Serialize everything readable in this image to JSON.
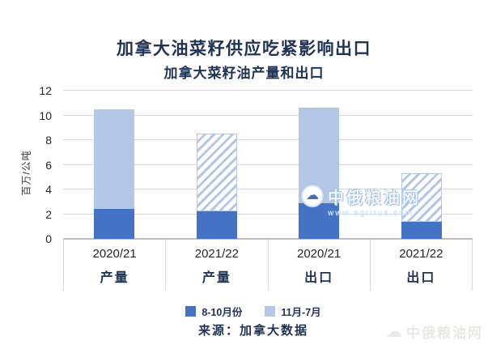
{
  "title": "加拿大油菜籽供应吃紧影响出口",
  "subtitle": "加拿大菜籽油产量和出口",
  "source": "来源：加拿大数据",
  "watermark": {
    "name": "中俄粮油网",
    "url": "www.agrirus.com"
  },
  "footer_logo": {
    "name": "中俄粮油网"
  },
  "colors": {
    "dark_blue": "#4472C4",
    "light_blue": "#B4C7E7",
    "title_navy": "#1F3354",
    "gridline": "#D9D9D9"
  },
  "chart_data": {
    "type": "bar",
    "stacked": true,
    "title": "加拿大油菜籽供应吃紧影响出口",
    "subtitle": "加拿大菜籽油产量和出口",
    "xlabel": "",
    "ylabel": "百万/公吨",
    "ylim": [
      0,
      12
    ],
    "yticks": [
      0,
      2,
      4,
      6,
      8,
      10,
      12
    ],
    "grid": true,
    "legend_position": "bottom",
    "categories": [
      {
        "year": "2020/21",
        "measure": "产量",
        "hatched": false
      },
      {
        "year": "2021/22",
        "measure": "产量",
        "hatched": true
      },
      {
        "year": "2020/21",
        "measure": "出口",
        "hatched": false
      },
      {
        "year": "2021/22",
        "measure": "出口",
        "hatched": true
      }
    ],
    "series": [
      {
        "name": "8-10月份",
        "style": "dark",
        "values": [
          2.4,
          2.2,
          2.9,
          1.4
        ]
      },
      {
        "name": "11月-7月",
        "style": "light",
        "values": [
          8.1,
          6.3,
          7.7,
          3.9
        ]
      }
    ],
    "totals": [
      10.5,
      8.5,
      10.6,
      5.3
    ],
    "note": "hatched bars = 2021/22 forecast values"
  }
}
